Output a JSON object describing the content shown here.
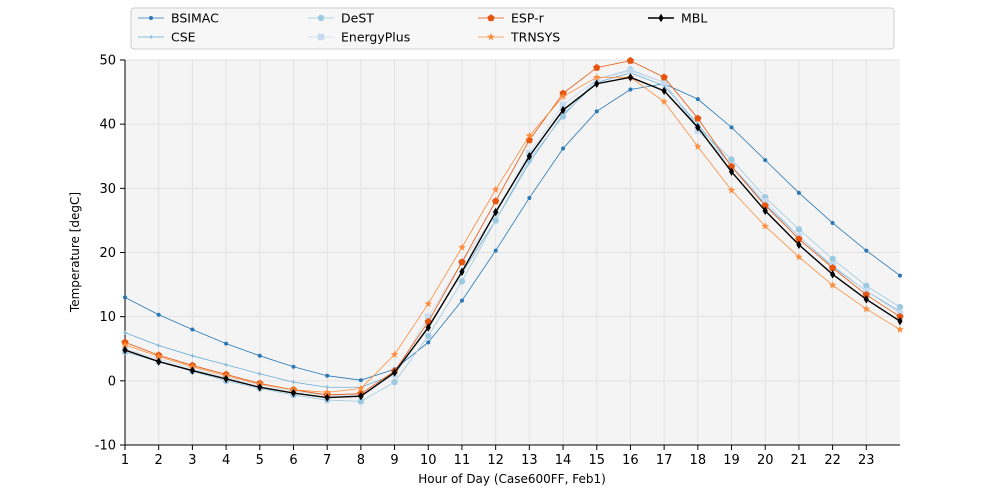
{
  "chart_data": {
    "type": "line",
    "title": "",
    "xlabel": "Hour of Day (Case600FF, Feb1)",
    "ylabel": "Temperature [degC]",
    "xlim": [
      1,
      24
    ],
    "ylim": [
      -10,
      50
    ],
    "xticks": [
      1,
      2,
      3,
      4,
      5,
      6,
      7,
      8,
      9,
      10,
      11,
      12,
      13,
      14,
      15,
      16,
      17,
      18,
      19,
      20,
      21,
      22,
      23
    ],
    "yticks": [
      -10,
      0,
      10,
      20,
      30,
      40,
      50
    ],
    "grid": true,
    "legend_position": "top",
    "x": [
      1,
      2,
      3,
      4,
      5,
      6,
      7,
      8,
      9,
      10,
      11,
      12,
      13,
      14,
      15,
      16,
      17,
      18,
      19,
      20,
      21,
      22,
      23,
      24
    ],
    "series": [
      {
        "name": "BSIMAC",
        "color": "#2878b5",
        "marker": "dot",
        "values": [
          13.0,
          10.3,
          8.0,
          5.8,
          3.9,
          2.2,
          0.8,
          0.1,
          1.8,
          6.0,
          12.5,
          20.3,
          28.5,
          36.2,
          42.0,
          45.4,
          46.3,
          43.9,
          39.5,
          34.4,
          29.3,
          24.6,
          20.3,
          16.4
        ]
      },
      {
        "name": "CSE",
        "color": "#6aaed6",
        "marker": "plus",
        "values": [
          7.5,
          5.5,
          3.9,
          2.5,
          1.1,
          -0.2,
          -1.0,
          -1.0,
          1.0,
          8.5,
          16.8,
          25.0,
          34.0,
          41.5,
          46.5,
          48.0,
          46.0,
          40.0,
          33.5,
          27.5,
          22.5,
          17.8,
          14.0,
          10.8
        ]
      },
      {
        "name": "DeST",
        "color": "#9ecae1",
        "marker": "circle",
        "values": [
          4.5,
          3.0,
          1.5,
          0.0,
          -1.2,
          -2.2,
          -3.0,
          -3.2,
          -0.2,
          7.0,
          15.5,
          25.0,
          34.5,
          41.2,
          47.0,
          48.5,
          46.5,
          39.5,
          34.5,
          28.6,
          23.6,
          19.0,
          14.8,
          11.5
        ]
      },
      {
        "name": "EnergyPlus",
        "color": "#c6dbef",
        "marker": "square",
        "values": [
          5.0,
          3.4,
          1.9,
          0.5,
          -0.6,
          -1.6,
          -2.3,
          -2.2,
          1.0,
          10.0,
          18.5,
          26.0,
          35.5,
          43.0,
          47.0,
          48.3,
          46.5,
          39.0,
          33.5,
          28.0,
          22.5,
          18.0,
          14.0,
          10.5
        ]
      },
      {
        "name": "ESP-r",
        "color": "#e6550d",
        "marker": "pentagon",
        "values": [
          6.0,
          4.0,
          2.4,
          1.0,
          -0.4,
          -1.4,
          -2.2,
          -2.0,
          1.5,
          9.2,
          18.5,
          28.0,
          37.5,
          44.8,
          48.8,
          49.9,
          47.3,
          40.9,
          33.4,
          27.3,
          22.1,
          17.6,
          13.4,
          10.0
        ]
      },
      {
        "name": "TRNSYS",
        "color": "#fd8d3c",
        "marker": "star",
        "values": [
          5.6,
          3.8,
          2.2,
          0.8,
          -0.5,
          -1.4,
          -1.8,
          -1.2,
          4.1,
          12.0,
          20.8,
          29.8,
          38.2,
          44.3,
          47.3,
          47.3,
          43.5,
          36.5,
          29.7,
          24.1,
          19.3,
          14.9,
          11.2,
          8.0
        ]
      },
      {
        "name": "MBL",
        "color": "#000000",
        "marker": "diamond",
        "values": [
          4.8,
          3.0,
          1.6,
          0.3,
          -1.0,
          -1.9,
          -2.6,
          -2.4,
          1.3,
          8.3,
          17.0,
          26.3,
          35.0,
          42.2,
          46.3,
          47.3,
          45.2,
          39.5,
          32.6,
          26.5,
          21.2,
          16.6,
          12.7,
          9.3
        ]
      }
    ]
  }
}
